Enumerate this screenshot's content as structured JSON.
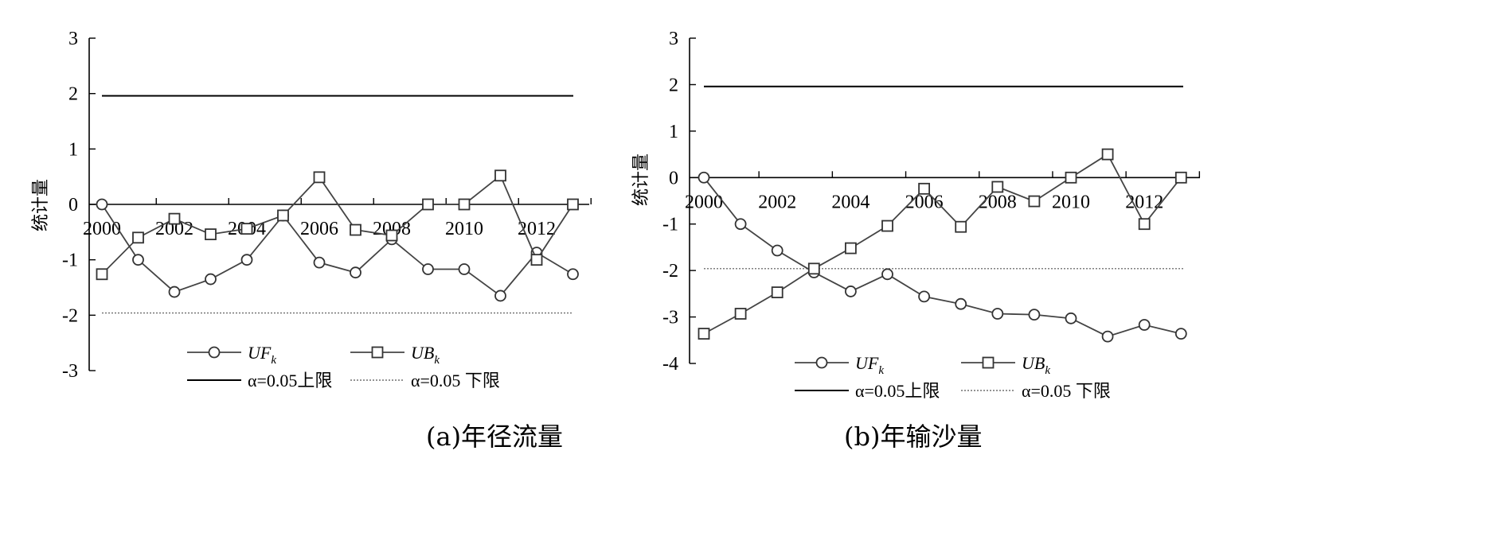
{
  "chart_data": [
    {
      "type": "line",
      "caption": "(a)年径流量",
      "ylabel": "统计量",
      "ylim": [
        -3,
        3
      ],
      "yticks": [
        "3",
        "2",
        "1",
        "0",
        "-1",
        "-2",
        "-3"
      ],
      "xticklabels": [
        "2000",
        "2002",
        "2004",
        "2006",
        "2008",
        "2010",
        "2012"
      ],
      "x": [
        2000,
        2001,
        2002,
        2003,
        2004,
        2005,
        2006,
        2007,
        2008,
        2009,
        2010,
        2011,
        2012,
        2013
      ],
      "series": [
        {
          "name": "UF",
          "sub": "k",
          "marker": "circle",
          "values": [
            0,
            -1.0,
            -1.58,
            -1.35,
            -1.0,
            -0.2,
            -1.05,
            -1.23,
            -0.63,
            -1.17,
            -1.17,
            -1.65,
            -0.87,
            -1.26
          ]
        },
        {
          "name": "UB",
          "sub": "k",
          "marker": "square",
          "values": [
            -1.26,
            -0.6,
            -0.26,
            -0.54,
            -0.44,
            -0.2,
            0.49,
            -0.46,
            -0.56,
            0,
            0,
            0.52,
            -1.0,
            0
          ]
        }
      ],
      "limits": {
        "upper": 1.96,
        "lower": -1.96
      },
      "legend": {
        "upper": "α=0.05上限",
        "lower": "α=0.05 下限",
        "position": "bottom"
      }
    },
    {
      "type": "line",
      "caption": "(b)年输沙量",
      "ylabel": "统计量",
      "ylim": [
        -4,
        3
      ],
      "yticks": [
        "3",
        "2",
        "1",
        "0",
        "-1",
        "-2",
        "-3",
        "-4"
      ],
      "xticklabels": [
        "2000",
        "2002",
        "2004",
        "2006",
        "2008",
        "2010",
        "2012"
      ],
      "x": [
        2000,
        2001,
        2002,
        2003,
        2004,
        2005,
        2006,
        2007,
        2008,
        2009,
        2010,
        2011,
        2012,
        2013
      ],
      "series": [
        {
          "name": "UF",
          "sub": "k",
          "marker": "circle",
          "values": [
            0,
            -1.0,
            -1.57,
            -2.04,
            -2.45,
            -2.08,
            -2.56,
            -2.72,
            -2.93,
            -2.95,
            -3.03,
            -3.42,
            -3.17,
            -3.36
          ]
        },
        {
          "name": "UB",
          "sub": "k",
          "marker": "square",
          "values": [
            -3.36,
            -2.93,
            -2.47,
            -1.96,
            -1.52,
            -1.04,
            -0.24,
            -1.06,
            -0.2,
            -0.51,
            0,
            0.5,
            -1.0,
            0
          ]
        }
      ],
      "limits": {
        "upper": 1.96,
        "lower": -1.96
      },
      "legend": {
        "upper": "α=0.05上限",
        "lower": "α=0.05 下限",
        "position": "bottom"
      }
    }
  ]
}
